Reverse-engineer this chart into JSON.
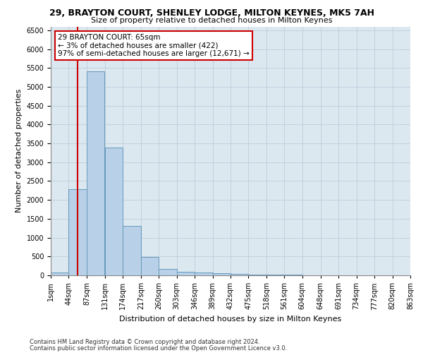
{
  "title1": "29, BRAYTON COURT, SHENLEY LODGE, MILTON KEYNES, MK5 7AH",
  "title2": "Size of property relative to detached houses in Milton Keynes",
  "xlabel": "Distribution of detached houses by size in Milton Keynes",
  "ylabel": "Number of detached properties",
  "footer1": "Contains HM Land Registry data © Crown copyright and database right 2024.",
  "footer2": "Contains public sector information licensed under the Open Government Licence v3.0.",
  "annotation_title": "29 BRAYTON COURT: 65sqm",
  "annotation_line1": "← 3% of detached houses are smaller (422)",
  "annotation_line2": "97% of semi-detached houses are larger (12,671) →",
  "property_size": 65,
  "bin_width": 43,
  "bin_starts": [
    1,
    44,
    87,
    131,
    174,
    217,
    260,
    303,
    346,
    389,
    432,
    475,
    518,
    561,
    604,
    648,
    691,
    734,
    777,
    820
  ],
  "bar_values": [
    75,
    2280,
    5420,
    3380,
    1310,
    480,
    160,
    95,
    80,
    55,
    30,
    20,
    15,
    10,
    8,
    5,
    4,
    3,
    2,
    2
  ],
  "bar_color": "#b8d0e8",
  "bar_edge_color": "#6699bb",
  "red_line_color": "#cc0000",
  "annotation_box_color": "#ffffff",
  "annotation_box_edge": "#cc0000",
  "background_color": "#ffffff",
  "plot_bg_color": "#dce8f0",
  "grid_color": "#b8c8d8",
  "ylim": [
    0,
    6600
  ],
  "yticks": [
    0,
    500,
    1000,
    1500,
    2000,
    2500,
    3000,
    3500,
    4000,
    4500,
    5000,
    5500,
    6000,
    6500
  ],
  "title1_fontsize": 9,
  "title2_fontsize": 8,
  "ylabel_fontsize": 8,
  "xlabel_fontsize": 8,
  "tick_fontsize": 7,
  "footer_fontsize": 6
}
